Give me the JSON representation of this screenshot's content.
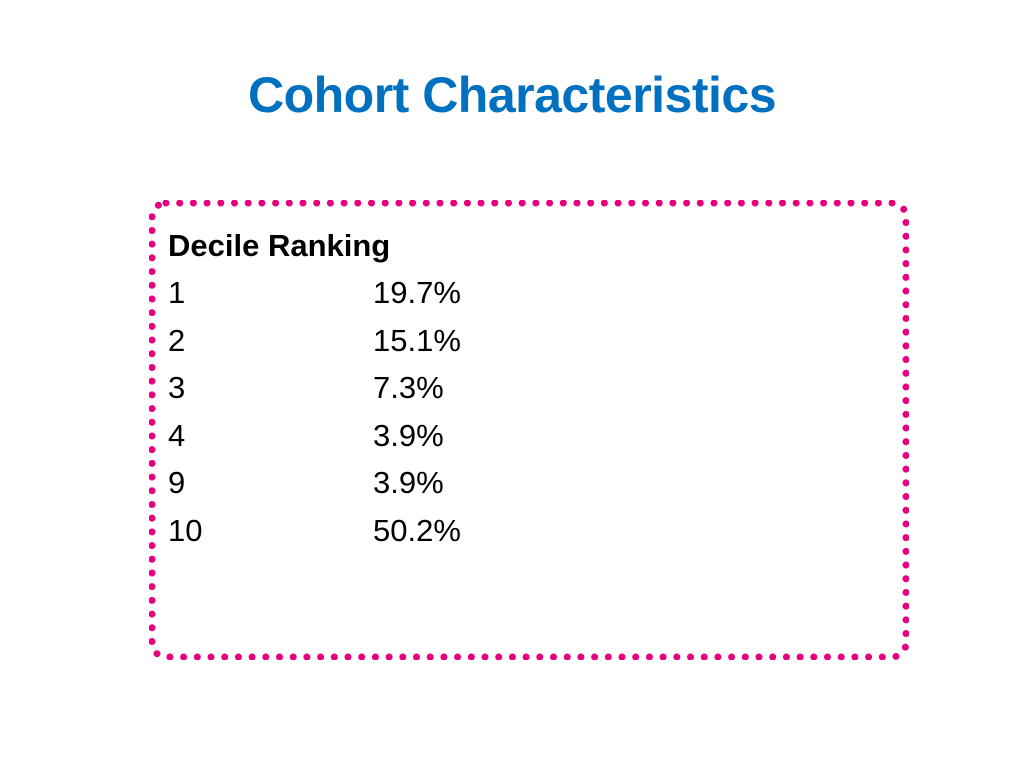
{
  "slide": {
    "title": "Cohort Characteristics"
  },
  "box": {
    "heading": "Decile Ranking",
    "rows": [
      {
        "decile": "1",
        "percent": "19.7%"
      },
      {
        "decile": "2",
        "percent": "15.1%"
      },
      {
        "decile": "3",
        "percent": "7.3%"
      },
      {
        "decile": "4",
        "percent": "3.9%"
      },
      {
        "decile": "9",
        "percent": "3.9%"
      },
      {
        "decile": "10",
        "percent": "50.2%"
      }
    ]
  },
  "colors": {
    "title": "#0070C0",
    "border_dots": "#E6007E",
    "text": "#000000"
  }
}
